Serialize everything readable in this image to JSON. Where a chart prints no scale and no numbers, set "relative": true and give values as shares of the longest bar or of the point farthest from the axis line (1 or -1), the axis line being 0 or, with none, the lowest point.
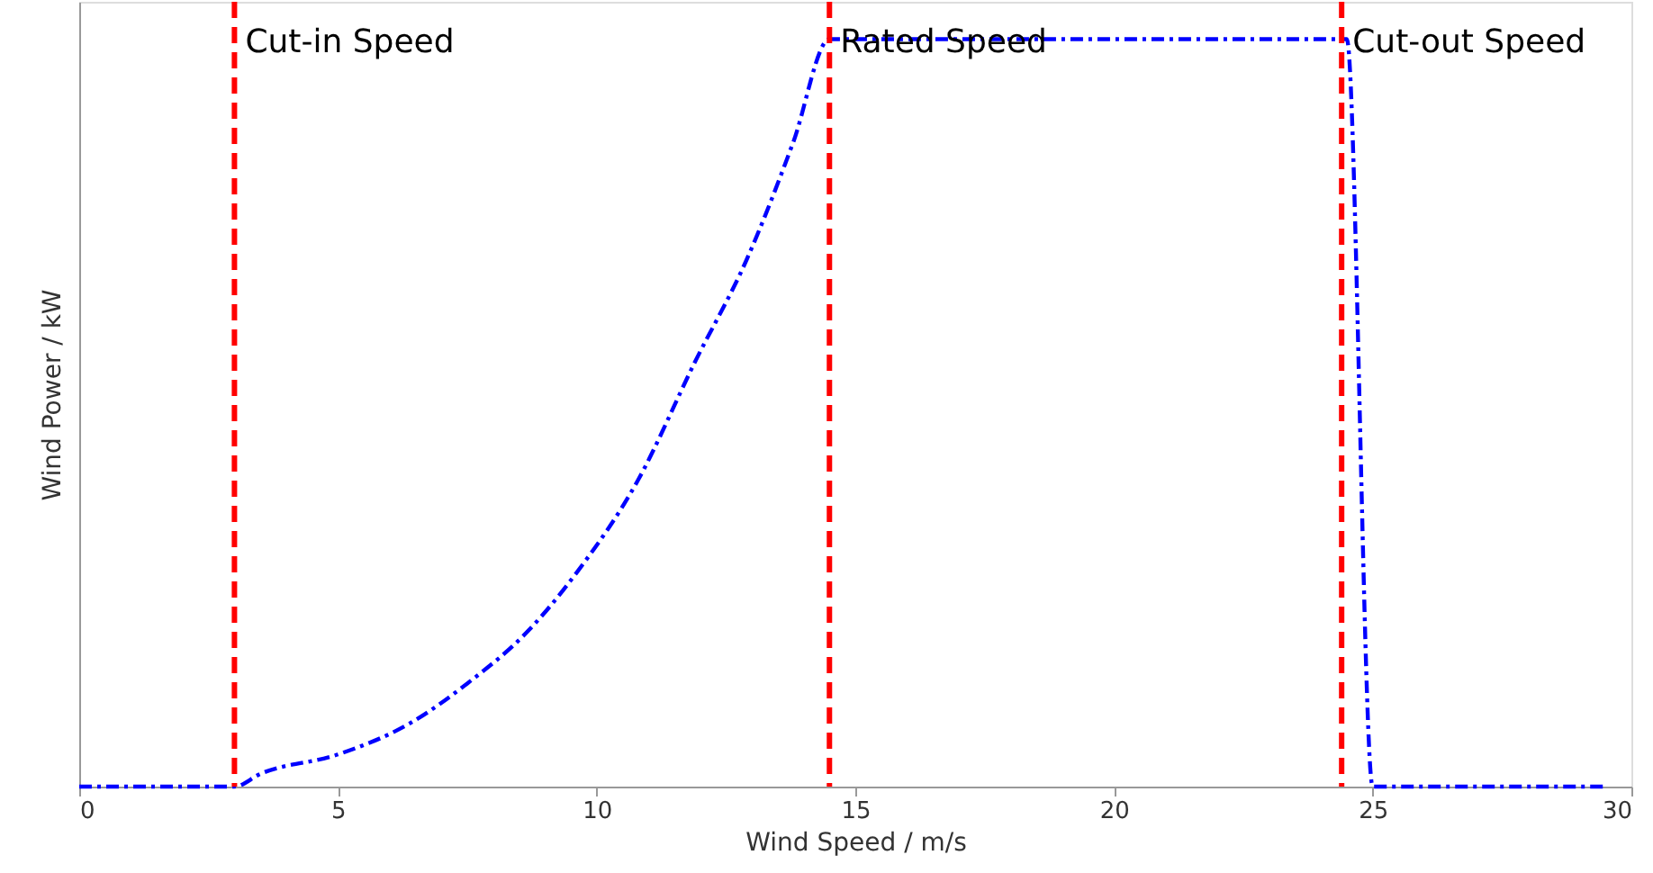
{
  "chart_data": {
    "type": "line",
    "xlabel": "Wind Speed / m/s",
    "ylabel": "Wind Power / kW",
    "relative": true,
    "xlim": [
      0,
      30
    ],
    "xticks": [
      0,
      5,
      10,
      15,
      20,
      25,
      30
    ],
    "marker": "none",
    "line_style": "dashed",
    "x": [
      0,
      3,
      3.5,
      5,
      6.4,
      7.5,
      8.7,
      9.6,
      10.8,
      11.9,
      12.9,
      13.8,
      14.5,
      24.5,
      25,
      29.5
    ],
    "series": [
      {
        "color": "#0000ff",
        "values": [
          0,
          0,
          0.017,
          0.043,
          0.085,
          0.138,
          0.21,
          0.285,
          0.41,
          0.568,
          0.705,
          0.862,
          1,
          1,
          0,
          0
        ]
      }
    ],
    "ref_lines": [
      {
        "axis": "x",
        "value": 3,
        "label": "Cut-in Speed",
        "color": "#ff0000",
        "line_style": "dashed"
      },
      {
        "axis": "x",
        "value": 14.5,
        "label": "Rated Speed",
        "color": "#ff0000",
        "line_style": "dashed"
      },
      {
        "axis": "x",
        "value": 24.4,
        "label": "Cut-out Speed",
        "color": "#ff0000",
        "line_style": "dashed"
      }
    ]
  }
}
